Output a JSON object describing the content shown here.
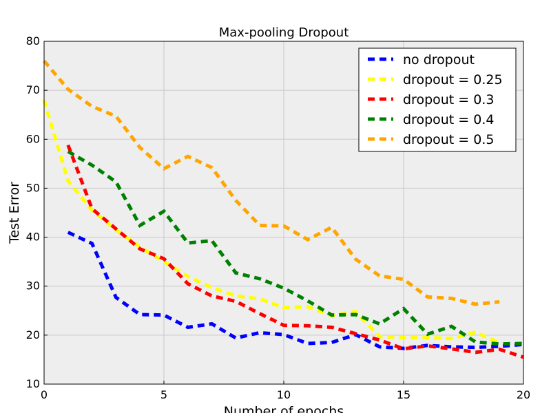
{
  "chart_data": {
    "type": "line",
    "title": "Max-pooling Dropout",
    "xlabel": "Number of epochs",
    "ylabel": "Test Error",
    "xlim": [
      0,
      20
    ],
    "ylim": [
      10,
      80
    ],
    "xticks": [
      0,
      5,
      10,
      15,
      20
    ],
    "yticks": [
      10,
      20,
      30,
      40,
      50,
      60,
      70,
      80
    ],
    "grid": true,
    "legend_position": "top-right",
    "series": [
      {
        "name": "no dropout",
        "color": "#0000ff",
        "x": [
          1,
          2,
          3,
          4,
          5,
          6,
          7,
          8,
          9,
          10,
          11,
          12,
          13,
          14,
          15,
          16,
          17,
          18,
          19,
          20
        ],
        "values": [
          41.0,
          38.7,
          27.7,
          24.2,
          24.1,
          21.6,
          22.3,
          19.4,
          20.5,
          20.1,
          18.3,
          18.5,
          20.1,
          17.6,
          17.3,
          17.9,
          17.6,
          17.5,
          17.7,
          18.1
        ]
      },
      {
        "name": "dropout =  0.25",
        "color": "#ffff00",
        "x": [
          0,
          1,
          2,
          3,
          4,
          5,
          6,
          7,
          8,
          9,
          10,
          11,
          12,
          13,
          14,
          15,
          16,
          17,
          18,
          19
        ],
        "values": [
          68.0,
          51.5,
          45.5,
          41.5,
          38.0,
          35.0,
          32.0,
          29.7,
          28.0,
          27.4,
          25.6,
          25.8,
          24.0,
          24.8,
          19.7,
          19.5,
          19.5,
          19.3,
          20.6,
          18.4
        ]
      },
      {
        "name": "dropout =  0.3",
        "color": "#ff0000",
        "x": [
          1,
          2,
          3,
          4,
          5,
          6,
          7,
          8,
          9,
          10,
          11,
          12,
          13,
          14,
          15,
          16,
          17,
          18,
          19,
          20
        ],
        "values": [
          58.8,
          45.8,
          41.7,
          37.6,
          35.6,
          30.5,
          28.0,
          26.9,
          24.4,
          22.0,
          21.9,
          21.6,
          20.3,
          19.0,
          17.2,
          17.8,
          17.2,
          16.5,
          17.1,
          15.5
        ]
      },
      {
        "name": "dropout =  0.4",
        "color": "#008000",
        "x": [
          1,
          2,
          3,
          4,
          5,
          6,
          7,
          8,
          9,
          10,
          11,
          12,
          13,
          14,
          15,
          16,
          17,
          18,
          19,
          20
        ],
        "values": [
          57.5,
          54.7,
          51.3,
          42.4,
          45.3,
          38.8,
          39.3,
          32.7,
          31.5,
          29.6,
          27.0,
          24.1,
          24.2,
          22.3,
          25.4,
          20.2,
          21.8,
          18.6,
          18.2,
          18.3
        ]
      },
      {
        "name": "dropout =  0.5",
        "color": "#ffa500",
        "x": [
          0,
          1,
          2,
          3,
          4,
          5,
          6,
          7,
          8,
          9,
          10,
          11,
          12,
          13,
          14,
          15,
          16,
          17,
          18,
          19
        ],
        "values": [
          76.0,
          70.2,
          66.7,
          64.7,
          58.3,
          54.0,
          56.5,
          54.2,
          47.5,
          42.4,
          42.3,
          39.5,
          42.0,
          35.5,
          32.1,
          31.4,
          27.8,
          27.5,
          26.3,
          26.8
        ]
      }
    ]
  },
  "style": {
    "plot_background": "#eeeeee",
    "grid_color": "#c8c8c8"
  }
}
